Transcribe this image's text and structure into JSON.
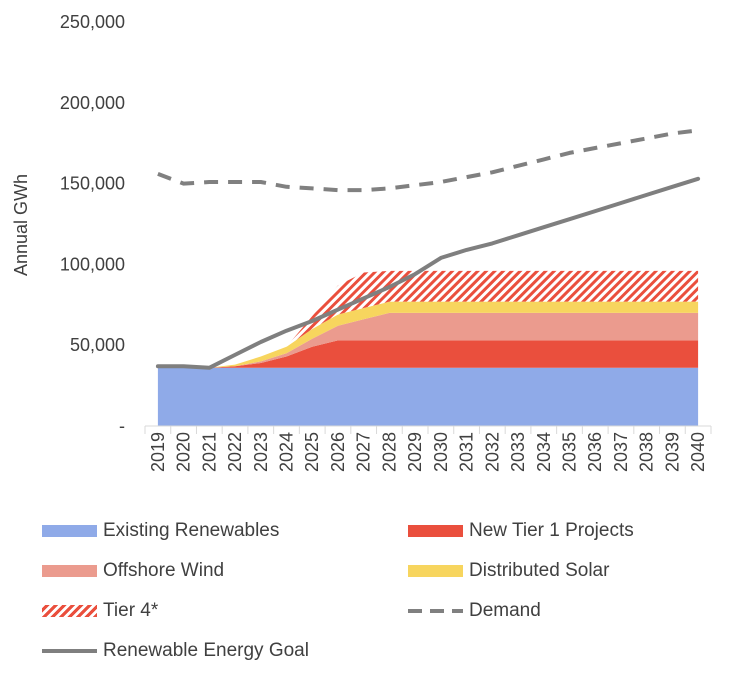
{
  "chart_data": {
    "type": "area",
    "ylabel": "Annual GWh",
    "ylim": [
      0,
      250000
    ],
    "yticks": [
      0,
      50000,
      100000,
      150000,
      200000,
      250000
    ],
    "ytick_labels": [
      "-",
      "50,000",
      "100,000",
      "150,000",
      "200,000",
      "250,000"
    ],
    "x": [
      "2019",
      "2020",
      "2021",
      "2022",
      "2023",
      "2024",
      "2025",
      "2026",
      "2027",
      "2028",
      "2029",
      "2030",
      "2031",
      "2032",
      "2033",
      "2034",
      "2035",
      "2036",
      "2037",
      "2038",
      "2039",
      "2040"
    ],
    "stack_series": [
      {
        "name": "Existing Renewables",
        "color": "#8faae8",
        "pattern": false,
        "values": [
          37000,
          37000,
          36000,
          36000,
          36000,
          36000,
          36000,
          36000,
          36000,
          36000,
          36000,
          36000,
          36000,
          36000,
          36000,
          36000,
          36000,
          36000,
          36000,
          36000,
          36000,
          36000
        ]
      },
      {
        "name": "New Tier 1 Projects",
        "color": "#ea4f3d",
        "pattern": false,
        "values": [
          0,
          0,
          0,
          1000,
          3000,
          7000,
          13000,
          17000,
          17000,
          17000,
          17000,
          17000,
          17000,
          17000,
          17000,
          17000,
          17000,
          17000,
          17000,
          17000,
          17000,
          17000
        ]
      },
      {
        "name": "Offshore Wind",
        "color": "#eb9b8e",
        "pattern": false,
        "values": [
          0,
          0,
          0,
          0,
          1000,
          2000,
          5000,
          9000,
          13000,
          17000,
          17000,
          17000,
          17000,
          17000,
          17000,
          17000,
          17000,
          17000,
          17000,
          17000,
          17000,
          17000
        ]
      },
      {
        "name": "Distributed Solar",
        "color": "#f7d55e",
        "pattern": false,
        "values": [
          0,
          0,
          0,
          1000,
          3000,
          4000,
          6000,
          7000,
          7000,
          7000,
          7000,
          7000,
          7000,
          7000,
          7000,
          7000,
          7000,
          7000,
          7000,
          7000,
          7000,
          7000
        ]
      },
      {
        "name": "Tier 4*",
        "color": "#ea4f3d",
        "pattern": true,
        "values": [
          0,
          0,
          0,
          0,
          0,
          0,
          8000,
          18000,
          22000,
          19000,
          19000,
          19000,
          19000,
          19000,
          19000,
          19000,
          19000,
          19000,
          19000,
          19000,
          19000,
          19000
        ]
      }
    ],
    "line_series": [
      {
        "name": "Demand",
        "color": "#808080",
        "dash": true,
        "values": [
          156000,
          150000,
          151000,
          151000,
          151000,
          148000,
          147000,
          146000,
          146000,
          147000,
          149000,
          151000,
          154000,
          157000,
          161000,
          165000,
          169000,
          172000,
          175000,
          178000,
          181000,
          183000
        ]
      },
      {
        "name": "Renewable Energy Goal",
        "color": "#7f7f7f",
        "dash": false,
        "values": [
          37000,
          37000,
          36000,
          44000,
          52000,
          59000,
          65000,
          72000,
          79000,
          86000,
          94000,
          104000,
          109000,
          113000,
          118000,
          123000,
          128000,
          133000,
          138000,
          143000,
          148000,
          153000
        ]
      }
    ],
    "legend": {
      "position": "bottom",
      "items": [
        {
          "label": "Existing Renewables",
          "kind": "fill",
          "color": "#8faae8"
        },
        {
          "label": "New Tier 1 Projects",
          "kind": "fill",
          "color": "#ea4f3d"
        },
        {
          "label": "Offshore Wind",
          "kind": "fill",
          "color": "#eb9b8e"
        },
        {
          "label": "Distributed Solar",
          "kind": "fill",
          "color": "#f7d55e"
        },
        {
          "label": "Tier 4*",
          "kind": "hatch",
          "color": "#ea4f3d"
        },
        {
          "label": "Demand",
          "kind": "dash",
          "color": "#808080"
        },
        {
          "label": "Renewable Energy Goal",
          "kind": "line",
          "color": "#7f7f7f"
        }
      ]
    },
    "grid": false
  }
}
